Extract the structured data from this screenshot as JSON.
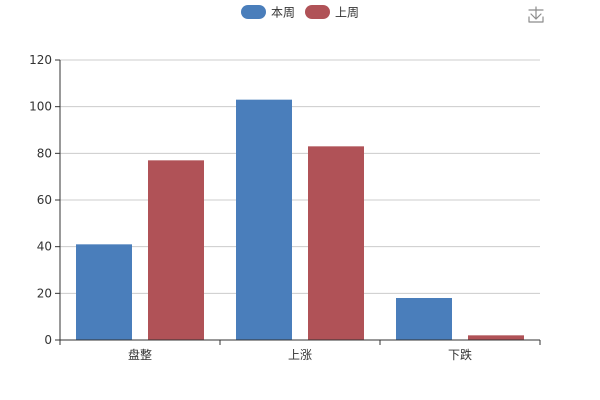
{
  "chart_data": {
    "type": "bar",
    "categories": [
      "盘整",
      "上涨",
      "下跌"
    ],
    "series": [
      {
        "name": "本周",
        "values": [
          41,
          103,
          18
        ],
        "color": "#4a7ebb"
      },
      {
        "name": "上周",
        "values": [
          77,
          83,
          2
        ],
        "color": "#b05257"
      }
    ],
    "ylim": [
      0,
      120
    ],
    "yticks": [
      0,
      20,
      40,
      60,
      80,
      100,
      120
    ],
    "grid": true,
    "legend_position": "top-center",
    "axis_color": "#333333",
    "grid_color": "#cccccc"
  },
  "toolbar": {
    "icon": "download-icon",
    "color": "#8c8c8c"
  }
}
